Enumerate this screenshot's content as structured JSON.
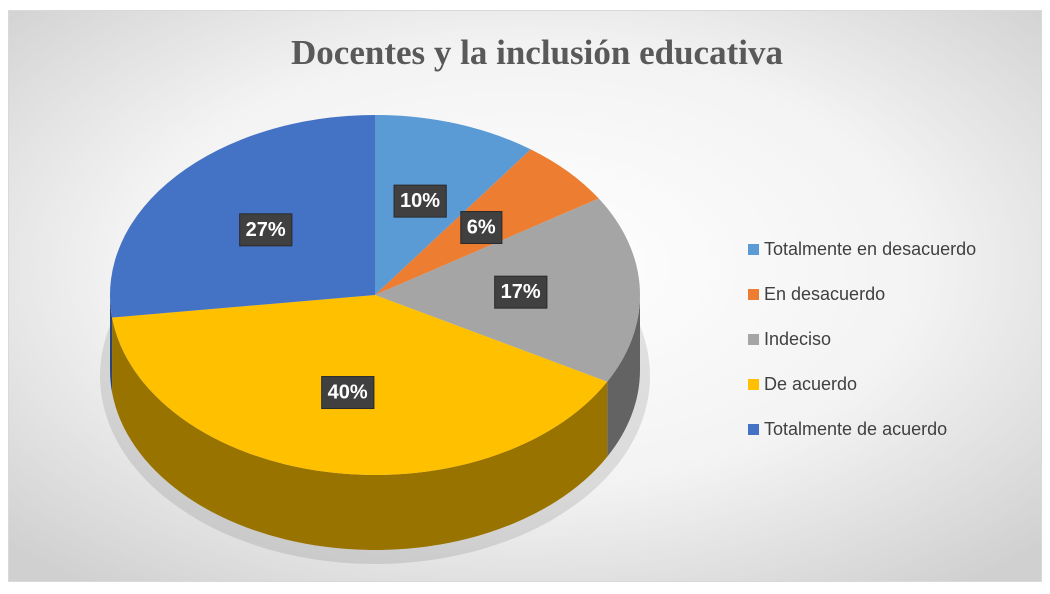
{
  "chart_data": {
    "type": "pie",
    "title": "Docentes y la inclusión educativa",
    "categories": [
      "Totalmente en desacuerdo",
      "En desacuerdo",
      "Indeciso",
      "De acuerdo",
      "Totalmente de acuerdo"
    ],
    "values": [
      10,
      6,
      17,
      40,
      27
    ],
    "value_labels": [
      "10%",
      "6%",
      "17%",
      "40%",
      "27%"
    ],
    "colors": [
      "#5b9bd5",
      "#ed7d31",
      "#a5a5a5",
      "#ffc000",
      "#4472c4"
    ],
    "legend": "right"
  }
}
